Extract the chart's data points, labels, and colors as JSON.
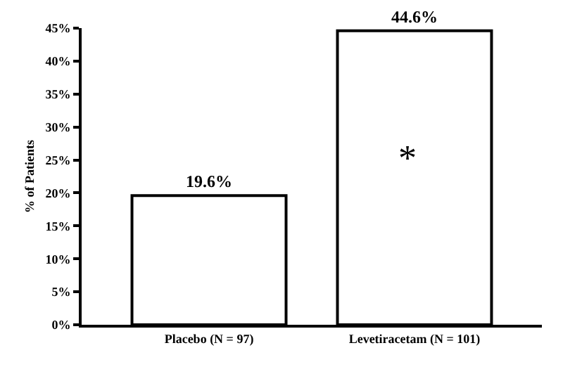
{
  "chart_data": {
    "type": "bar",
    "ylabel": "% of Patients",
    "categories": [
      "Placebo (N = 97)",
      "Levetiracetam (N = 101)"
    ],
    "values": [
      19.6,
      44.6
    ],
    "color": "#ffffff",
    "value_labels": [
      "19.6%",
      "44.6%"
    ],
    "ylim": [
      0,
      45
    ],
    "yticks": [
      {
        "value": 0,
        "label": "0%"
      },
      {
        "value": 5,
        "label": "5%"
      },
      {
        "value": 10,
        "label": "10%"
      },
      {
        "value": 15,
        "label": "15%"
      },
      {
        "value": 20,
        "label": "20%"
      },
      {
        "value": 25,
        "label": "25%"
      },
      {
        "value": 30,
        "label": "30%"
      },
      {
        "value": 35,
        "label": "35%"
      },
      {
        "value": 40,
        "label": "40%"
      },
      {
        "value": 45,
        "label": "45%"
      }
    ],
    "annotations": [
      "*"
    ]
  }
}
